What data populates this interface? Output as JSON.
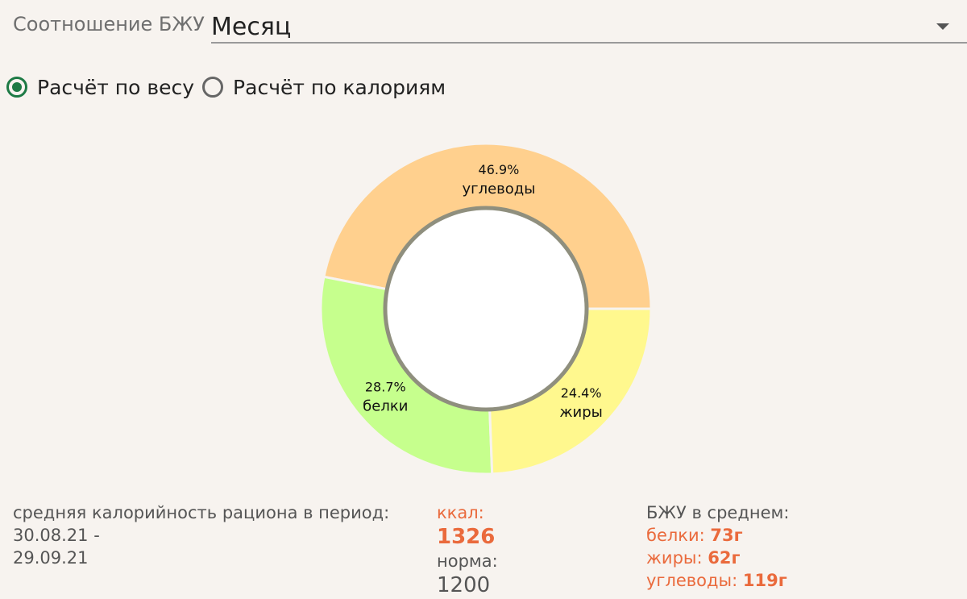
{
  "header": {
    "label": "Соотношение БЖУ",
    "period_selected": "Месяц"
  },
  "mode": {
    "by_weight": "Расчёт по весу",
    "by_calories": "Расчёт по калориям",
    "selected": "by_weight"
  },
  "chart_data": {
    "type": "pie",
    "style": "donut",
    "slices": [
      {
        "label": "углеводы",
        "value": 46.9,
        "pct_text": "46.9%",
        "color": "#ffd08e"
      },
      {
        "label": "белки",
        "value": 28.7,
        "pct_text": "28.7%",
        "color": "#c6ff8d"
      },
      {
        "label": "жиры",
        "value": 24.4,
        "pct_text": "24.4%",
        "color": "#fff88e"
      }
    ]
  },
  "stats": {
    "period_caption": "средняя калорийность рациона в период:",
    "date_from": "30.08.21 -",
    "date_to": "29.09.21",
    "kcal_label": "ккал:",
    "kcal_value": "1326",
    "norm_label": "норма:",
    "norm_value": "1200",
    "avg_caption": "БЖУ в среднем:",
    "proteins_label": "белки:",
    "proteins_value": "73г",
    "fats_label": "жиры:",
    "fats_value": "62г",
    "carbs_label": "углеводы:",
    "carbs_value": "119г"
  },
  "colors": {
    "accent": "#ea6a3c",
    "radio_selected": "#1d7a45",
    "background": "#f7f3ef"
  }
}
